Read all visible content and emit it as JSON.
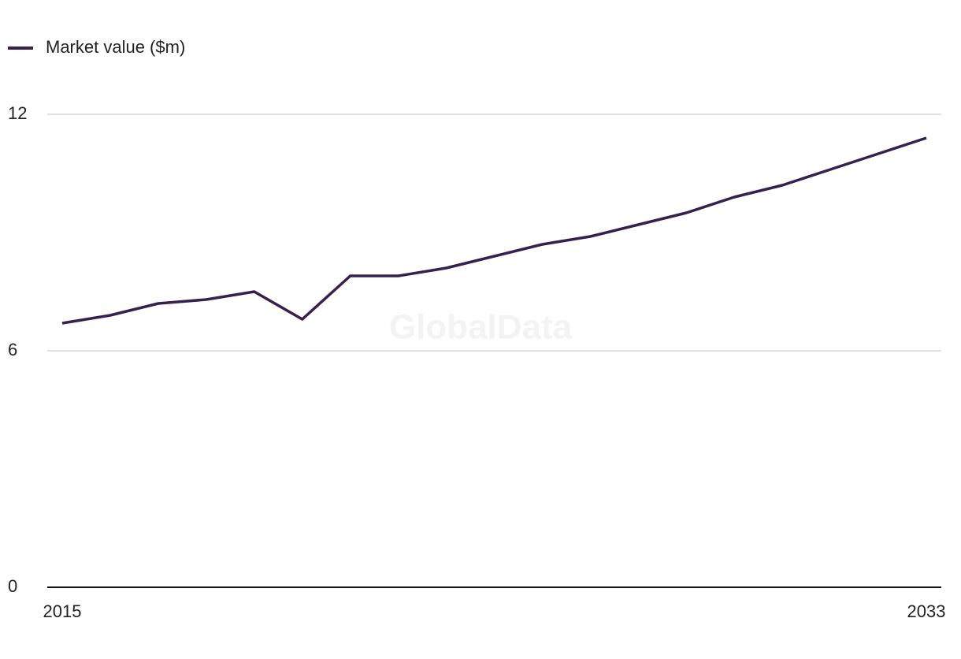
{
  "chart_data": {
    "type": "line",
    "x": [
      2015,
      2016,
      2017,
      2018,
      2019,
      2020,
      2021,
      2022,
      2023,
      2024,
      2025,
      2026,
      2027,
      2028,
      2029,
      2030,
      2031,
      2032,
      2033
    ],
    "series": [
      {
        "name": "Market value ($m)",
        "color": "#35204f",
        "values": [
          6.7,
          6.9,
          7.2,
          7.3,
          7.5,
          6.8,
          7.9,
          7.9,
          8.1,
          8.4,
          8.7,
          8.9,
          9.2,
          9.5,
          9.9,
          10.2,
          10.6,
          11.0,
          11.4
        ]
      }
    ],
    "xlim": [
      2015,
      2033
    ],
    "xticks": [
      2015,
      2033
    ],
    "ylim": [
      0,
      12
    ],
    "yticks": [
      0,
      6,
      12
    ],
    "grid": true,
    "legend": "top-left",
    "watermark": "GlobalData"
  }
}
